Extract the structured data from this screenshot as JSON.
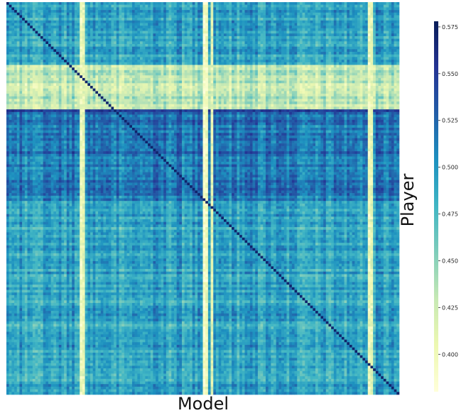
{
  "chart_data": {
    "type": "heatmap",
    "xlabel": "Model",
    "ylabel": "Player",
    "colormap": "YlGnBu",
    "grid": false,
    "legend": "colorbar-right",
    "value_range": [
      0.38,
      0.578
    ],
    "colorbar_ticks": [
      "0.575",
      "0.550",
      "0.525",
      "0.500",
      "0.475",
      "0.450",
      "0.425",
      "0.400"
    ],
    "rows": 150,
    "cols": 150,
    "diagonal_value": 0.57,
    "bright_row_band": {
      "rows": [
        24,
        40
      ],
      "value": 0.42
    },
    "dark_row_line": {
      "row": 41,
      "value": 0.55
    },
    "dark_row_block": {
      "rows": [
        42,
        75
      ],
      "value": 0.52
    },
    "bright_columns": [
      {
        "col": 28,
        "value": 0.4
      },
      {
        "col": 29,
        "value": 0.41
      },
      {
        "col": 75,
        "value": 0.39
      },
      {
        "col": 76,
        "value": 0.4
      },
      {
        "col": 78,
        "value": 0.41
      },
      {
        "col": 138,
        "value": 0.4
      },
      {
        "col": 139,
        "value": 0.41
      }
    ],
    "background_value": 0.49
  }
}
